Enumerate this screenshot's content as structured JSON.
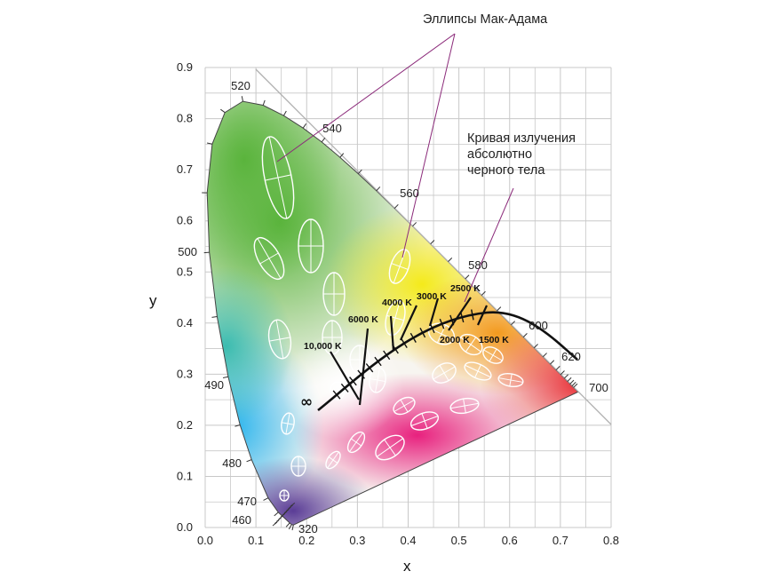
{
  "diagram": {
    "x_axis_title": "x",
    "y_axis_title": "y",
    "x_ticks": [
      "0.0",
      "0.1",
      "0.2",
      "0.3",
      "0.4",
      "0.5",
      "0.6",
      "0.7",
      "0.8"
    ],
    "y_ticks": [
      "0.0",
      "0.1",
      "0.2",
      "0.3",
      "0.4",
      "0.5",
      "0.6",
      "0.7",
      "0.8",
      "0.9"
    ],
    "wavelength_labels": [
      "320",
      "460",
      "470",
      "480",
      "490",
      "500",
      "520",
      "540",
      "560",
      "580",
      "600",
      "620",
      "700"
    ],
    "cct_labels": [
      "10,000 K",
      "6000 K",
      "4000 K",
      "3000 K",
      "2500 K",
      "2000 K",
      "1500 K"
    ],
    "infinity_label": "∞",
    "callout_macadam": "Эллипсы Мак-Адама",
    "callout_blackbody": [
      "Кривая излучения",
      "абсолютно",
      "черного тела"
    ],
    "colors": {
      "green": "#5ab43c",
      "yellow": "#f2e61a",
      "red": "#e8222a",
      "blue": "#2fb6ee",
      "violet": "#5a3c96",
      "magenta": "#e8217e",
      "callout_line": "#8b2a7a",
      "grid": "#c8c8c8"
    }
  }
}
